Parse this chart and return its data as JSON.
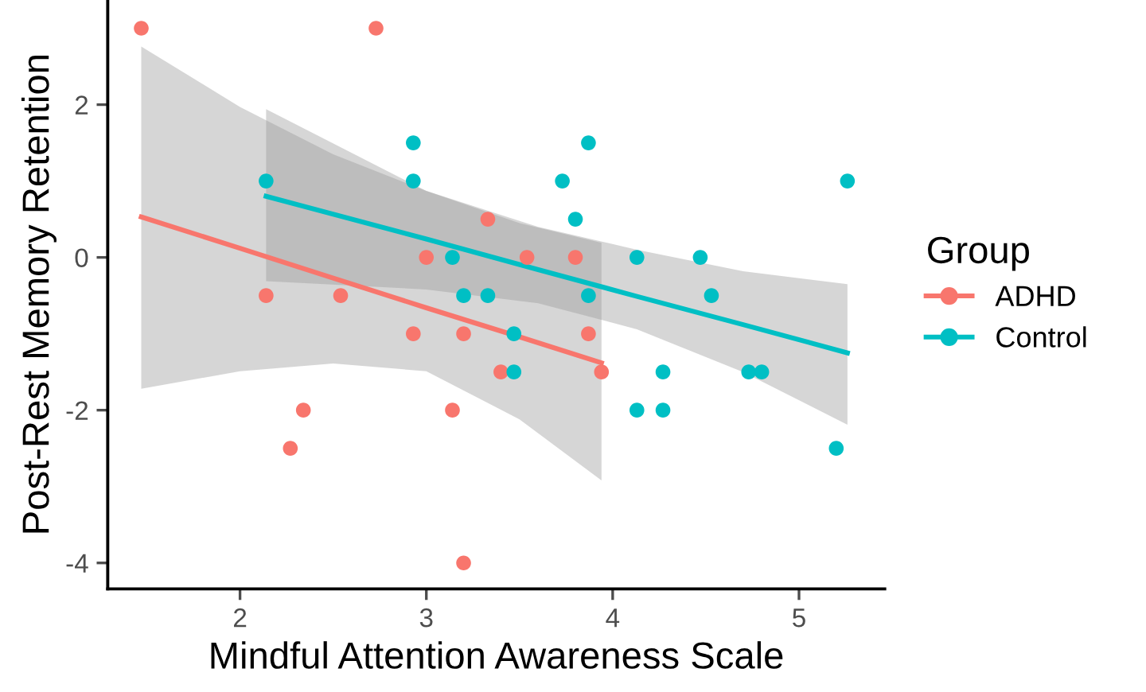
{
  "chart_data": {
    "type": "scatter",
    "xlabel": "Mindful Attention Awareness Scale",
    "ylabel": "Post-Rest Memory Retention",
    "legend_title": "Group",
    "legend": "right",
    "grid": false,
    "xlim": [
      1.29,
      5.46
    ],
    "xticks": [
      2,
      3,
      4,
      5
    ],
    "ylim": [
      -4.34,
      3.37
    ],
    "yticks": [
      -4,
      -2,
      0,
      2
    ],
    "series": [
      {
        "name": "ADHD",
        "color": "#f8766d",
        "marker": "circle",
        "x": [
          1.47,
          2.73,
          2.14,
          2.54,
          2.34,
          2.27,
          2.93,
          3.0,
          3.2,
          3.14,
          3.33,
          3.4,
          3.54,
          3.8,
          3.87,
          3.94,
          3.2
        ],
        "values": [
          3,
          3,
          -0.5,
          -0.5,
          -2,
          -2.5,
          -1,
          0,
          -1,
          -2,
          0.5,
          -1.5,
          0,
          0,
          -1,
          -1.5,
          -4
        ]
      },
      {
        "name": "Control",
        "color": "#00bfc4",
        "marker": "circle",
        "x": [
          2.14,
          2.93,
          2.93,
          3.14,
          3.2,
          3.33,
          3.47,
          3.47,
          3.73,
          3.87,
          3.8,
          3.87,
          4.13,
          4.13,
          4.47,
          4.53,
          4.27,
          4.27,
          4.73,
          4.8,
          5.26,
          5.2
        ],
        "values": [
          1,
          1.5,
          1,
          0,
          -0.5,
          -0.5,
          -1,
          -1.5,
          1,
          1.5,
          0.5,
          -0.5,
          0,
          -2,
          0,
          -0.5,
          -1.5,
          -2,
          -1.5,
          -1.5,
          1,
          -2.5
        ]
      },
      {
        "type": "line",
        "marker": "none",
        "color": "#f8766d",
        "x": [
          1.47,
          2.0,
          2.5,
          3.0,
          3.5,
          3.94
        ],
        "values": [
          0.53,
          0.12,
          -0.27,
          -0.66,
          -1.04,
          -1.38
        ],
        "upper": [
          2.76,
          1.97,
          1.35,
          0.87,
          0.45,
          0.19
        ],
        "lower": [
          -1.72,
          -1.49,
          -1.39,
          -1.49,
          -2.12,
          -2.92
        ]
      },
      {
        "type": "line",
        "marker": "none",
        "color": "#00bfc4",
        "x": [
          2.14,
          3.0,
          3.6,
          4.13,
          4.7,
          5.26
        ],
        "values": [
          0.8,
          0.24,
          -0.16,
          -0.51,
          -0.88,
          -1.25
        ],
        "upper": [
          1.94,
          0.87,
          0.4,
          0.1,
          -0.18,
          -0.35
        ],
        "lower": [
          -0.31,
          -0.42,
          -0.6,
          -0.94,
          -1.5,
          -2.19
        ]
      }
    ]
  }
}
